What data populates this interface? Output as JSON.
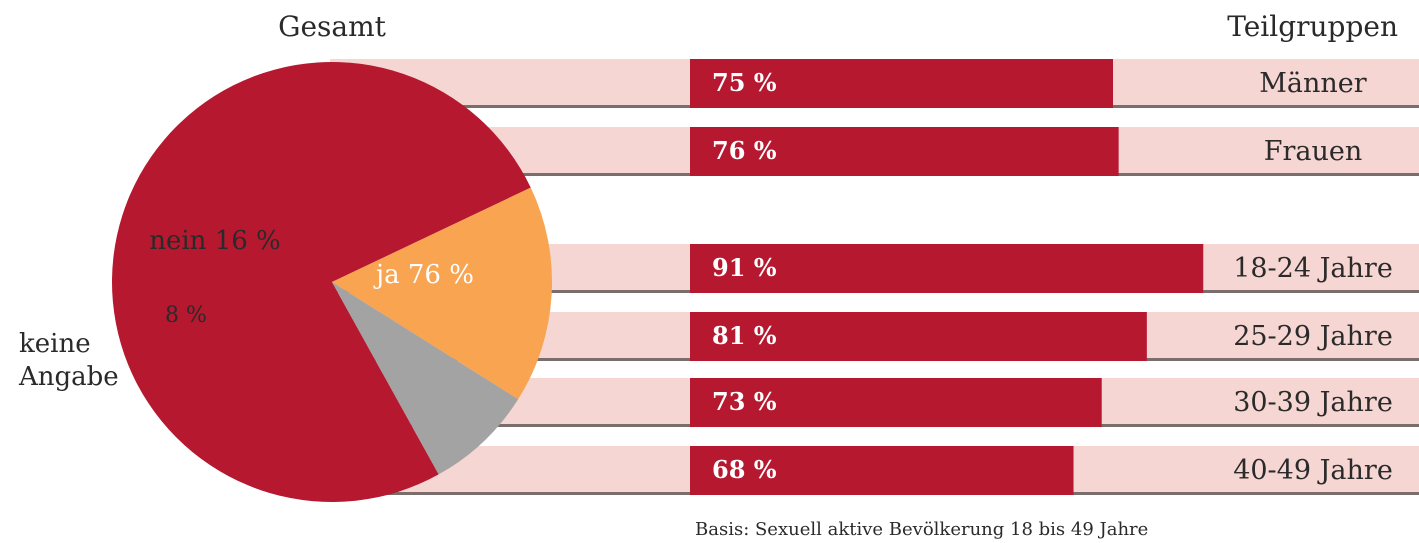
{
  "headings": {
    "left": "Gesamt",
    "right": "Teilgruppen"
  },
  "footnote": "Basis: Sexuell aktive Bevölkerung 18 bis 49 Jahre",
  "colors": {
    "primary": "#b5182f",
    "track": "#f6d6d3",
    "divider": "#7a6e6c",
    "orange": "#f8a451",
    "gray": "#a3a3a3",
    "text": "#2a2a2a",
    "white": "#ffffff"
  },
  "chart_data": [
    {
      "type": "pie",
      "title": "Gesamt",
      "slices": [
        {
          "label": "ja",
          "value": 76,
          "display": "ja 76 %",
          "color": "#b5182f"
        },
        {
          "label": "nein",
          "value": 16,
          "display": "nein 16 %",
          "color": "#f8a451"
        },
        {
          "label": "keine Angabe",
          "value": 8,
          "display": "8 %",
          "color": "#a3a3a3"
        }
      ],
      "outside_label": [
        "keine",
        "Angabe"
      ]
    },
    {
      "type": "bar",
      "title": "Teilgruppen",
      "max": 100,
      "groups": [
        {
          "bars": [
            {
              "category": "Männer",
              "value": 75,
              "display": "75 %"
            },
            {
              "category": "Frauen",
              "value": 76,
              "display": "76 %"
            }
          ]
        },
        {
          "bars": [
            {
              "category": "18-24 Jahre",
              "value": 91,
              "display": "91 %"
            },
            {
              "category": "25-29 Jahre",
              "value": 81,
              "display": "81 %"
            },
            {
              "category": "30-39 Jahre",
              "value": 73,
              "display": "73 %"
            },
            {
              "category": "40-49 Jahre",
              "value": 68,
              "display": "68 %"
            }
          ]
        }
      ]
    }
  ]
}
